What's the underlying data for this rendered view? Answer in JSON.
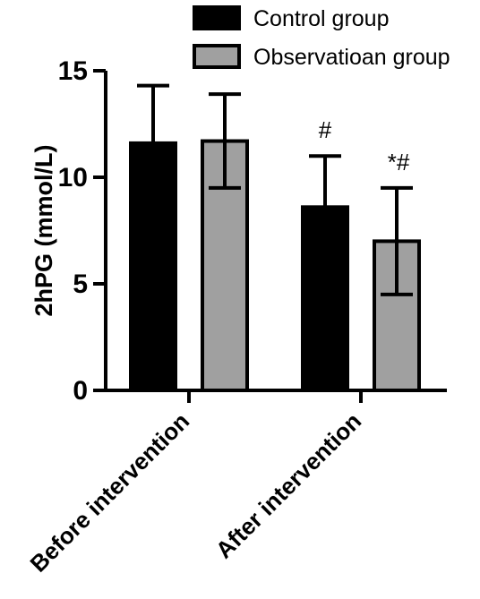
{
  "chart_data": {
    "type": "bar",
    "title": "",
    "xlabel": "",
    "ylabel": "2hPG (mmol/L)",
    "ylim": [
      0,
      15
    ],
    "yticks": [
      0,
      5,
      10,
      15
    ],
    "grid": false,
    "legend_position": "top-right",
    "categories": [
      "Before intervention",
      "After intervention"
    ],
    "series": [
      {
        "name": "Control group",
        "color": "#000000",
        "values": [
          11.6,
          8.6
        ],
        "error": [
          2.7,
          2.4
        ]
      },
      {
        "name": "Observatioan group",
        "color": "#a0a0a0",
        "values": [
          11.7,
          7.0
        ],
        "error": [
          2.2,
          2.5
        ]
      }
    ],
    "annotations": [
      {
        "category": "After intervention",
        "series": "Control group",
        "text": "#"
      },
      {
        "category": "After intervention",
        "series": "Observatioan group",
        "text": "*#"
      }
    ]
  }
}
